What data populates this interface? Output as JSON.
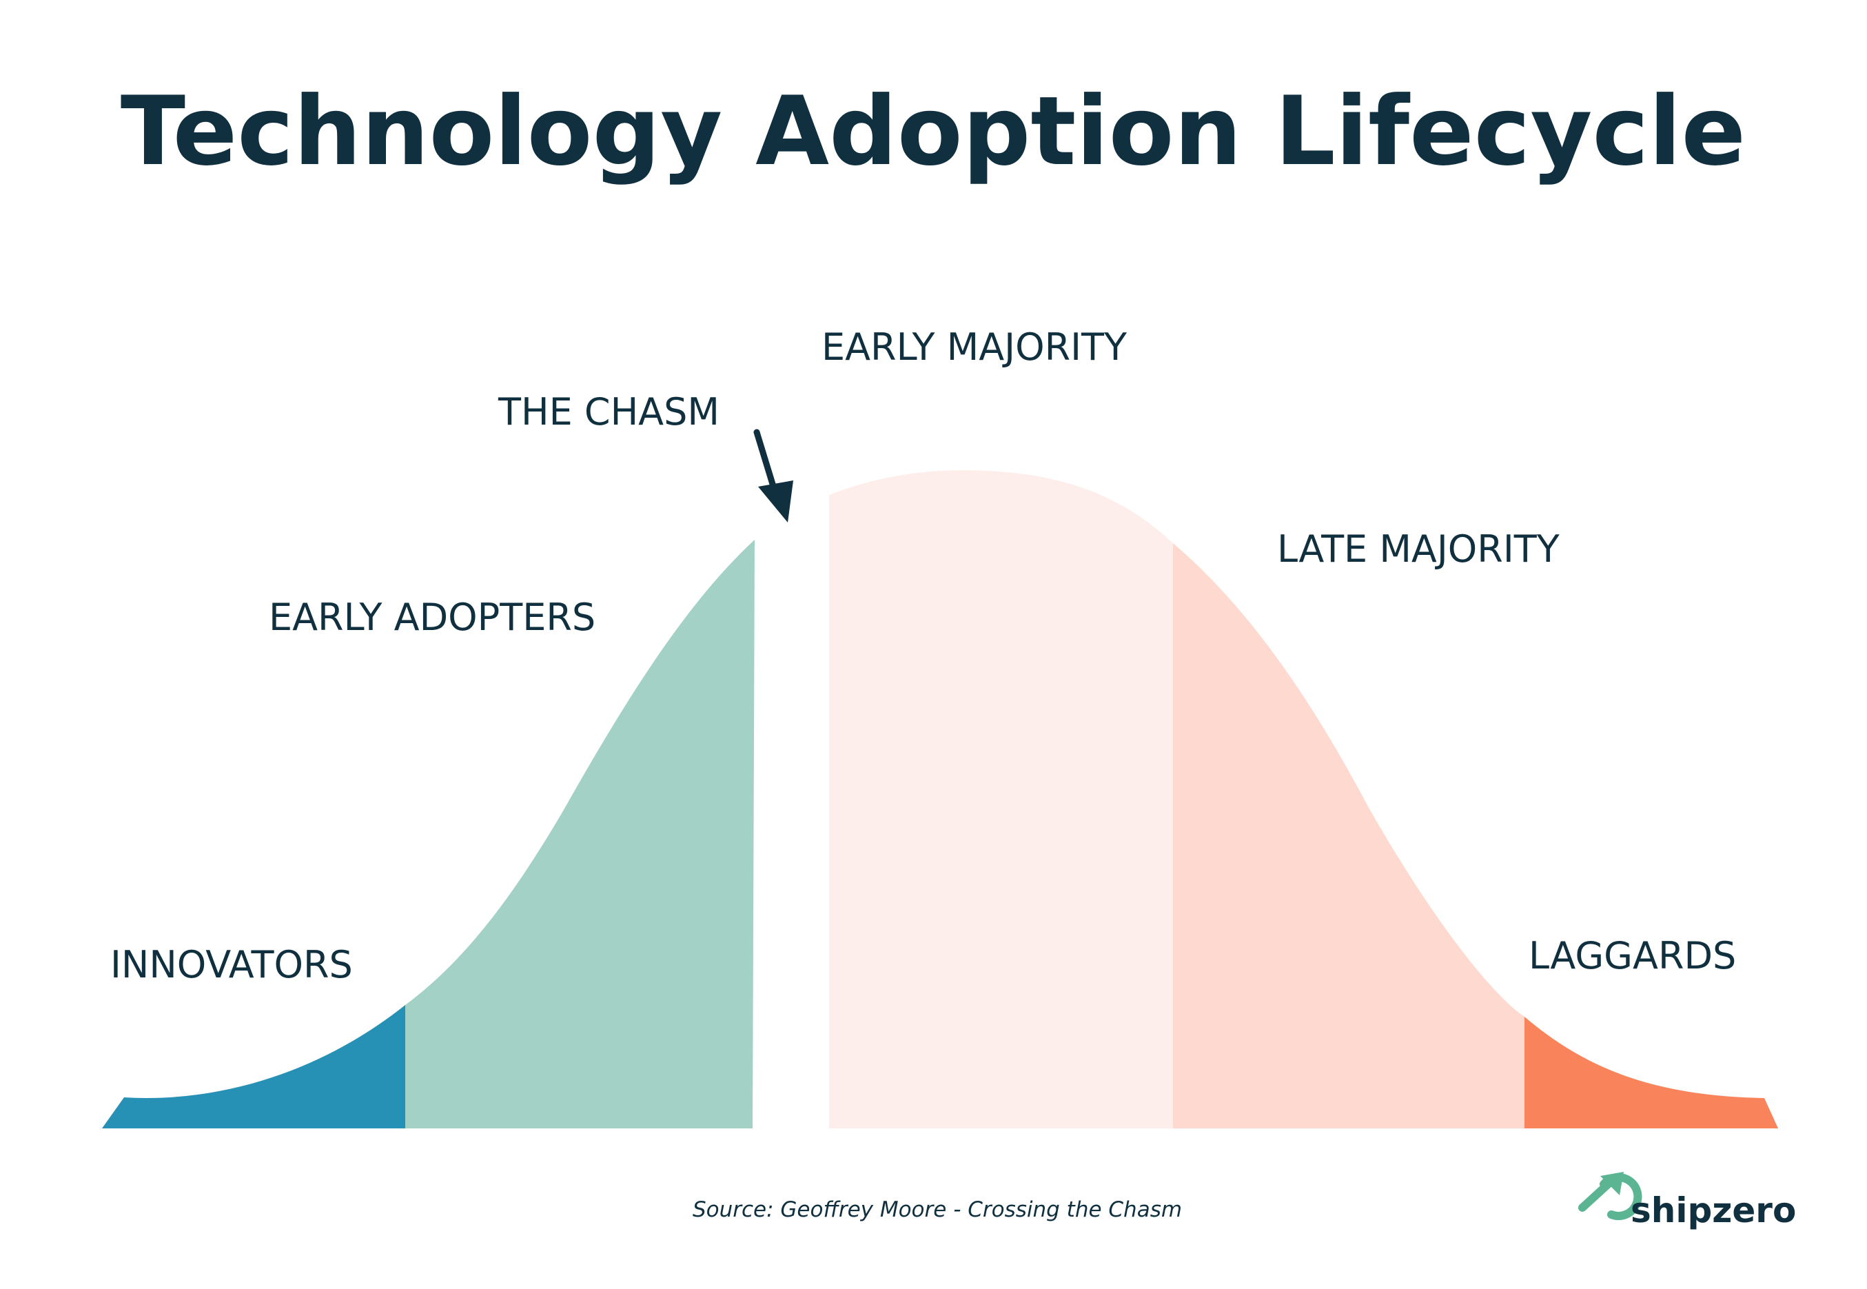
{
  "title": "Technology Adoption Lifecycle",
  "segments": [
    {
      "label": "INNOVATORS",
      "color": "#2790b5"
    },
    {
      "label": "EARLY ADOPTERS",
      "color": "#a4d1c5"
    },
    {
      "label": "EARLY MAJORITY",
      "color": "#fdeeeb"
    },
    {
      "label": "LATE MAJORITY",
      "color": "#fdd9cf"
    },
    {
      "label": "LAGGARDS",
      "color": "#f9845b"
    }
  ],
  "chasm": {
    "label": "THE CHASM",
    "icon": "arrow-down-icon"
  },
  "source": "Source: Geoffrey Moore - Crossing the Chasm",
  "brand": {
    "name": "shipzero",
    "icon": "shipzero-logo-icon",
    "color": "#5bb593"
  },
  "text_color": "#10303f"
}
